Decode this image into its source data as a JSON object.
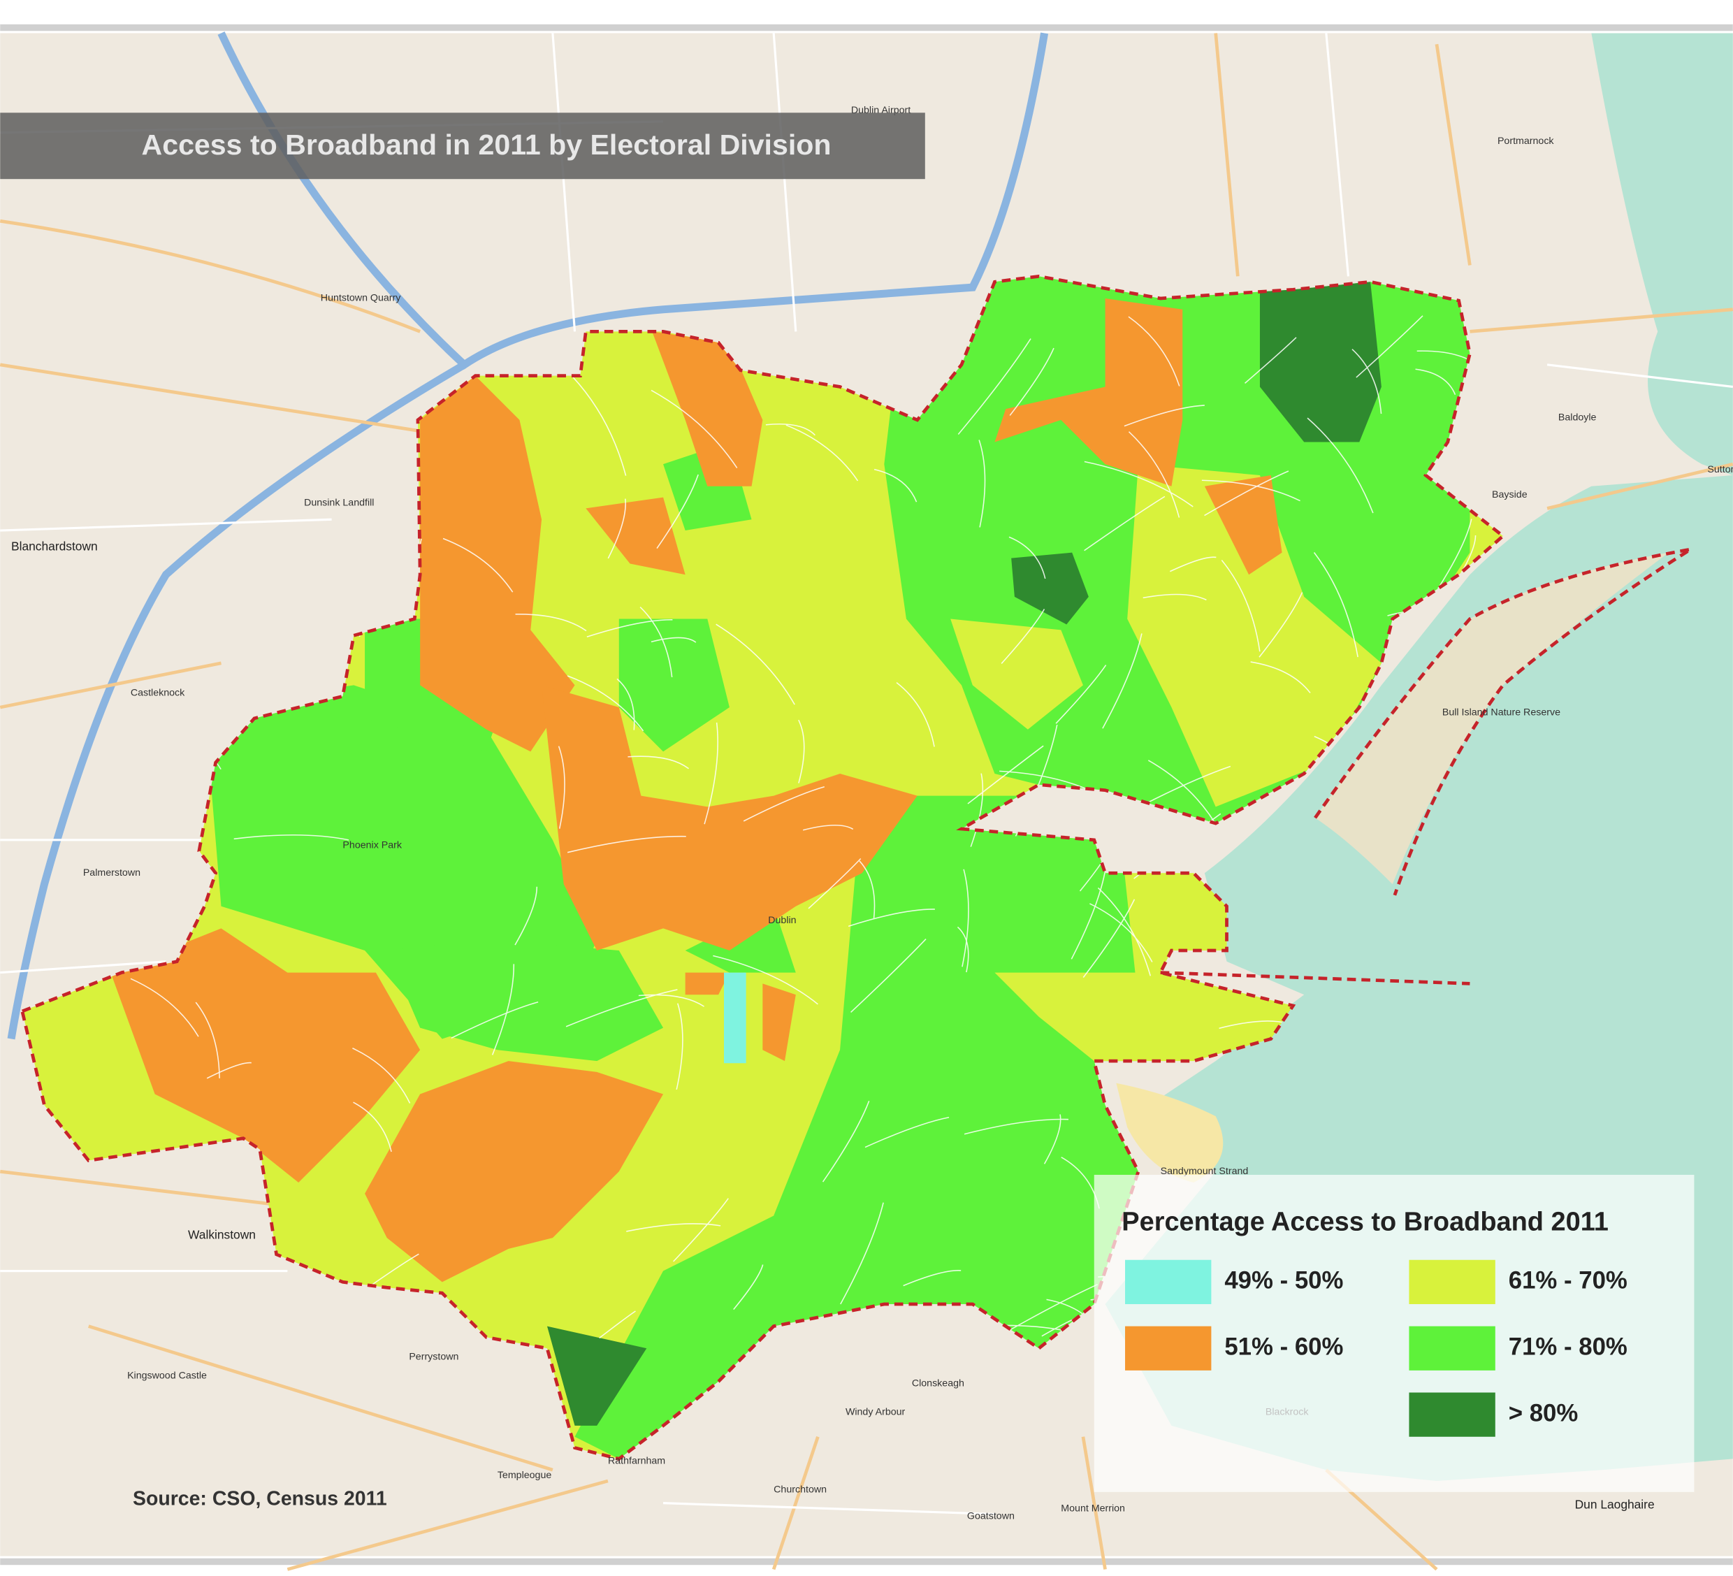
{
  "title": "Access to Broadband in 2011 by Electoral Division",
  "source": "Source: CSO, Census 2011",
  "legend": {
    "title": "Percentage Access to Broadband 2011",
    "items": [
      {
        "label": "49% - 50%",
        "color": "#7ff3e0"
      },
      {
        "label": "51% - 60%",
        "color": "#f5972f"
      },
      {
        "label": "61% - 70%",
        "color": "#d8f23c"
      },
      {
        "label": "71% - 80%",
        "color": "#5ef23a"
      },
      {
        "label": "> 80%",
        "color": "#2f8a2f"
      }
    ]
  },
  "places": [
    "Blanchardstown",
    "Castleknock",
    "Palmerstown",
    "Walkinstown",
    "Perrystown",
    "Templeogue",
    "Rathfarnham",
    "Churchtown",
    "Windy Arbour",
    "Clonskeagh",
    "Blackrock",
    "Mount Merrion",
    "Goatstown",
    "Dun Laoghaire",
    "Sandymount Strand",
    "Bayside",
    "Baldoyle",
    "Portmarnock",
    "Sutton",
    "Huntstown Quarry",
    "Dunsink Landfill",
    "Phoenix Park",
    "Dublin",
    "Bull Island Nature Reserve",
    "Kingswood Castle",
    "Dublin Airport"
  ]
}
